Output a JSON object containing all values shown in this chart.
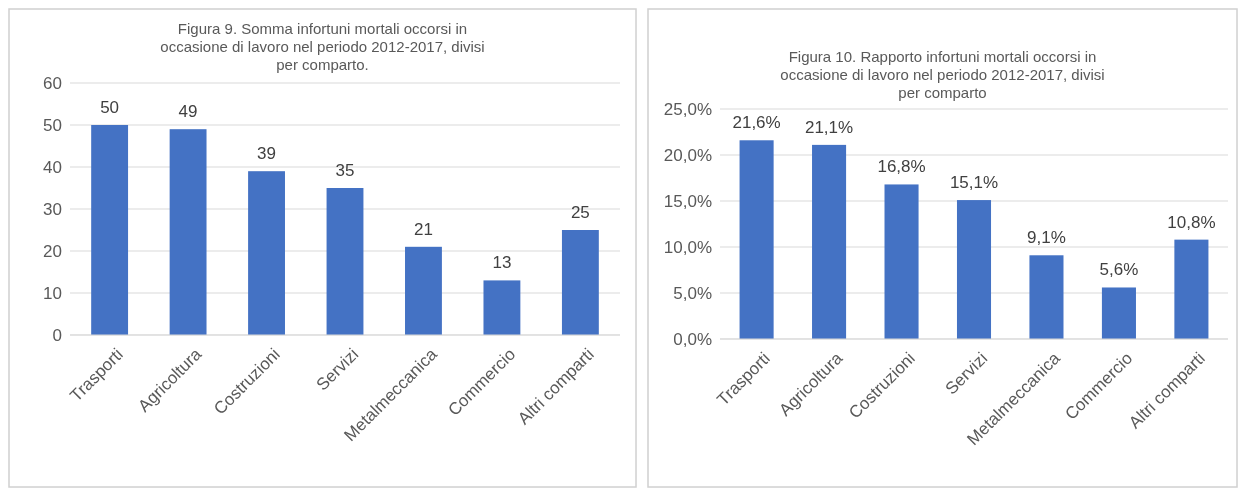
{
  "chart_data": [
    {
      "type": "bar",
      "title": "Figura 9. Somma infortuni mortali occorsi in occasione di lavoro nel periodo 2012-2017, divisi per comparto.",
      "categories": [
        "Trasporti",
        "Agricoltura",
        "Costruzioni",
        "Servizi",
        "Metalmeccanica",
        "Commercio",
        "Altri comparti"
      ],
      "values": [
        50,
        49,
        39,
        35,
        21,
        13,
        25
      ],
      "color": "#4472c4",
      "ylim": [
        0,
        60
      ],
      "yticks": [
        0,
        10,
        20,
        30,
        40,
        50,
        60
      ],
      "grid": "y",
      "data_labels": true
    },
    {
      "type": "bar",
      "title": "Figura 10. Rapporto infortuni mortali occorsi in occasione di lavoro nel periodo 2012-2017, divisi per comparto",
      "categories": [
        "Trasporti",
        "Agricoltura",
        "Costruzioni",
        "Servizi",
        "Metalmeccanica",
        "Commercio",
        "Altri comparti"
      ],
      "values": [
        21.6,
        21.1,
        16.8,
        15.1,
        9.1,
        5.6,
        10.8
      ],
      "value_labels": [
        "21,6%",
        "21,1%",
        "16,8%",
        "15,1%",
        "9,1%",
        "5,6%",
        "10,8%"
      ],
      "color": "#4472c4",
      "ylim": [
        0,
        25
      ],
      "yticks": [
        {
          "value": 0,
          "label": "0,0%"
        },
        {
          "value": 5,
          "label": "5,0%"
        },
        {
          "value": 10,
          "label": "10,0%"
        },
        {
          "value": 15,
          "label": "15,0%"
        },
        {
          "value": 20,
          "label": "20,0%"
        },
        {
          "value": 25,
          "label": "25,0%"
        }
      ],
      "grid": "y"
    }
  ]
}
